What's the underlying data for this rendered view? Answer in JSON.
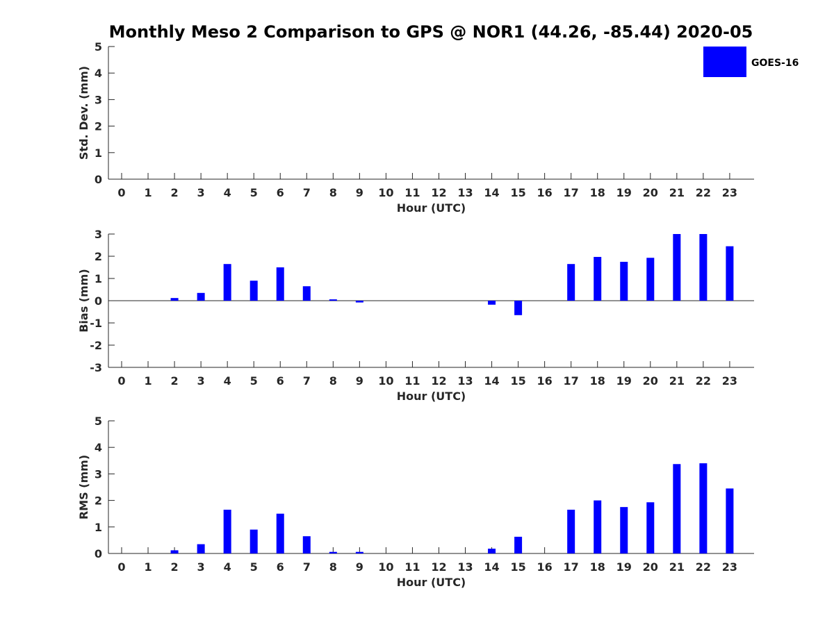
{
  "title": "Monthly Meso 2 Comparison to GPS @ NOR1 (44.26, -85.44) 2020-05",
  "legend": {
    "label": "GOES-16",
    "color": "#0000ff",
    "position": "top-right"
  },
  "chart_data": [
    {
      "type": "bar",
      "xlabel": "Hour (UTC)",
      "ylabel": "Std. Dev. (mm)",
      "ylim": [
        0,
        5
      ],
      "yticks": [
        "0",
        "1",
        "2",
        "3",
        "4",
        "5"
      ],
      "categories": [
        "0",
        "1",
        "2",
        "3",
        "4",
        "5",
        "6",
        "7",
        "8",
        "9",
        "10",
        "11",
        "12",
        "13",
        "14",
        "15",
        "16",
        "17",
        "18",
        "19",
        "20",
        "21",
        "22",
        "23"
      ],
      "series": [
        {
          "name": "GOES-16",
          "color": "#0000ff",
          "values": [
            0,
            0,
            0,
            0,
            0,
            0,
            0,
            0,
            0,
            0,
            0,
            0,
            0,
            0,
            0,
            0,
            0,
            0,
            0,
            0,
            0,
            0,
            0,
            0
          ]
        }
      ]
    },
    {
      "type": "bar",
      "xlabel": "Hour (UTC)",
      "ylabel": "Bias (mm)",
      "ylim": [
        -3,
        3
      ],
      "yticks": [
        "-3",
        "-2",
        "-1",
        "0",
        "1",
        "2",
        "3"
      ],
      "categories": [
        "0",
        "1",
        "2",
        "3",
        "4",
        "5",
        "6",
        "7",
        "8",
        "9",
        "10",
        "11",
        "12",
        "13",
        "14",
        "15",
        "16",
        "17",
        "18",
        "19",
        "20",
        "21",
        "22",
        "23"
      ],
      "series": [
        {
          "name": "GOES-16",
          "color": "#0000ff",
          "values": [
            0,
            0,
            0.12,
            0.35,
            1.65,
            0.9,
            1.5,
            0.65,
            0.06,
            -0.08,
            0,
            0,
            0,
            0,
            -0.18,
            -0.65,
            0,
            1.65,
            1.97,
            1.75,
            1.93,
            3.0,
            3.0,
            2.45
          ]
        }
      ]
    },
    {
      "type": "bar",
      "xlabel": "Hour (UTC)",
      "ylabel": "RMS (mm)",
      "ylim": [
        0,
        5
      ],
      "yticks": [
        "0",
        "1",
        "2",
        "3",
        "4",
        "5"
      ],
      "categories": [
        "0",
        "1",
        "2",
        "3",
        "4",
        "5",
        "6",
        "7",
        "8",
        "9",
        "10",
        "11",
        "12",
        "13",
        "14",
        "15",
        "16",
        "17",
        "18",
        "19",
        "20",
        "21",
        "22",
        "23"
      ],
      "series": [
        {
          "name": "GOES-16",
          "color": "#0000ff",
          "values": [
            0,
            0,
            0.12,
            0.35,
            1.65,
            0.9,
            1.5,
            0.65,
            0.06,
            0.06,
            0,
            0,
            0,
            0,
            0.18,
            0.63,
            0,
            1.65,
            2.0,
            1.75,
            1.93,
            3.37,
            3.4,
            2.45
          ]
        }
      ]
    }
  ]
}
